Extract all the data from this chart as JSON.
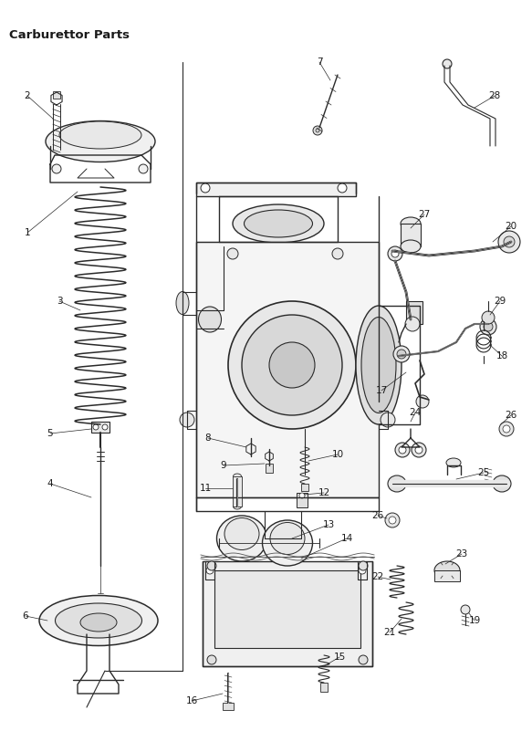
{
  "title": "Carburettor Parts",
  "background_color": "#ffffff",
  "line_color": "#2a2a2a",
  "label_color": "#1a1a1a",
  "label_fontsize": 7.5,
  "fig_width": 5.83,
  "fig_height": 8.24,
  "dpi": 100
}
